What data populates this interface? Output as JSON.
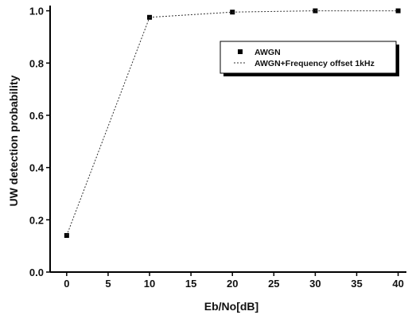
{
  "chart_data": {
    "type": "scatter",
    "xlabel": "Eb/No[dB]",
    "ylabel": "UW detection probability",
    "xlim": [
      -2,
      41
    ],
    "ylim": [
      0.0,
      1.02
    ],
    "xticks": [
      "0",
      "5",
      "10",
      "15",
      "20",
      "25",
      "30",
      "35",
      "40"
    ],
    "yticks": [
      "0.0",
      "0.2",
      "0.4",
      "0.6",
      "0.8",
      "1.0"
    ],
    "grid": false,
    "legend_position": "top-right",
    "series": [
      {
        "name": "AWGN",
        "marker": "square",
        "line": "none",
        "x": [
          0,
          10,
          20,
          30,
          40
        ],
        "y": [
          0.14,
          0.975,
          0.995,
          1.0,
          1.0
        ]
      },
      {
        "name": "AWGN+Frequency offset 1kHz",
        "marker": "none",
        "line": "dotted",
        "x": [
          0,
          10,
          20,
          30,
          40
        ],
        "y": [
          0.14,
          0.975,
          0.995,
          1.0,
          1.0
        ]
      }
    ]
  }
}
